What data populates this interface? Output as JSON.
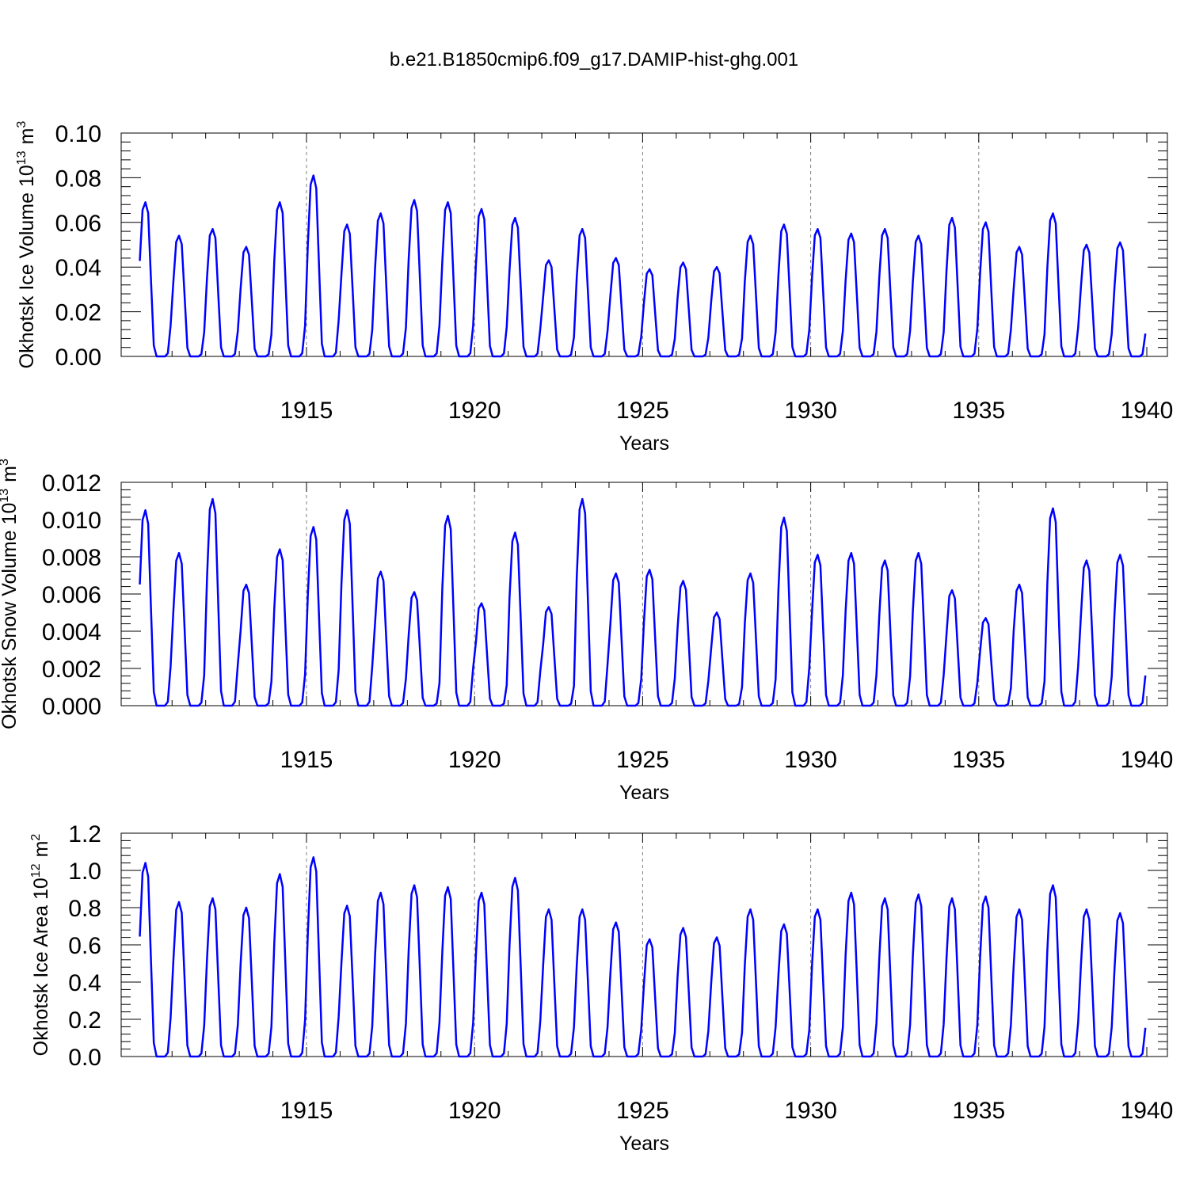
{
  "title": "b.e21.B1850cmip6.f09_g17.DAMIP-hist-ghg.001",
  "colors": {
    "series": "#0000ff",
    "axis": "#000000",
    "grid": "#808080"
  },
  "chart_data": [
    {
      "type": "line",
      "name": "ice-volume",
      "ylabel_main": "Okhotsk Ice Volume 10",
      "ylabel_exp": "13",
      "ylabel_unit": "m",
      "ylabel_unit_exp": "3",
      "xlabel": "Years",
      "ylim": [
        0,
        0.1
      ],
      "xlim": [
        1910.0,
        1940.0
      ],
      "yticks": [
        "0.00",
        "0.02",
        "0.04",
        "0.06",
        "0.08",
        "0.10"
      ],
      "xticks": [
        "1915",
        "1920",
        "1925",
        "1930",
        "1935",
        "1940"
      ],
      "start": 1910.04,
      "peaks": [
        0.069,
        0.054,
        0.057,
        0.049,
        0.069,
        0.081,
        0.059,
        0.064,
        0.07,
        0.069,
        0.066,
        0.062,
        0.043,
        0.057,
        0.044,
        0.039,
        0.042,
        0.04,
        0.054,
        0.059,
        0.057,
        0.055,
        0.057,
        0.054,
        0.062,
        0.06,
        0.049,
        0.064,
        0.05,
        0.051
      ]
    },
    {
      "type": "line",
      "name": "snow-volume",
      "ylabel_main": "Okhotsk Snow Volume 10",
      "ylabel_exp": "13",
      "ylabel_unit": "m",
      "ylabel_unit_exp": "3",
      "xlabel": "Years",
      "ylim": [
        0,
        0.012
      ],
      "xlim": [
        1910.0,
        1940.0
      ],
      "yticks": [
        "0.000",
        "0.002",
        "0.004",
        "0.006",
        "0.008",
        "0.010",
        "0.012"
      ],
      "xticks": [
        "1915",
        "1920",
        "1925",
        "1930",
        "1935",
        "1940"
      ],
      "start": 1910.04,
      "peaks": [
        0.0105,
        0.0082,
        0.0111,
        0.0065,
        0.0084,
        0.0096,
        0.0105,
        0.0072,
        0.0061,
        0.0102,
        0.0055,
        0.0093,
        0.0053,
        0.0111,
        0.0071,
        0.0073,
        0.0067,
        0.005,
        0.0071,
        0.0101,
        0.0081,
        0.0082,
        0.0078,
        0.0082,
        0.0062,
        0.0047,
        0.0065,
        0.0106,
        0.0078,
        0.0081
      ]
    },
    {
      "type": "line",
      "name": "ice-area",
      "ylabel_main": "Okhotsk Ice Area 10",
      "ylabel_exp": "12",
      "ylabel_unit": "m",
      "ylabel_unit_exp": "2",
      "xlabel": "Years",
      "ylim": [
        0,
        1.2
      ],
      "xlim": [
        1910.0,
        1940.0
      ],
      "yticks": [
        "0.0",
        "0.2",
        "0.4",
        "0.6",
        "0.8",
        "1.0",
        "1.2"
      ],
      "xticks": [
        "1915",
        "1920",
        "1925",
        "1930",
        "1935",
        "1940"
      ],
      "start": 1910.04,
      "peaks": [
        1.04,
        0.83,
        0.85,
        0.8,
        0.98,
        1.07,
        0.81,
        0.88,
        0.92,
        0.91,
        0.88,
        0.96,
        0.79,
        0.79,
        0.72,
        0.63,
        0.69,
        0.64,
        0.79,
        0.71,
        0.79,
        0.88,
        0.85,
        0.87,
        0.85,
        0.86,
        0.79,
        0.92,
        0.79,
        0.77
      ]
    }
  ]
}
